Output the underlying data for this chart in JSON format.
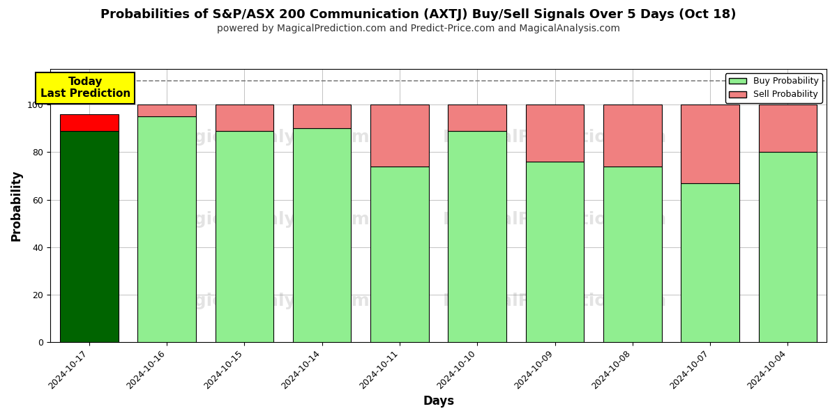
{
  "title": "Probabilities of S&P/ASX 200 Communication (AXTJ) Buy/Sell Signals Over 5 Days (Oct 18)",
  "subtitle": "powered by MagicalPrediction.com and Predict-Price.com and MagicalAnalysis.com",
  "xlabel": "Days",
  "ylabel": "Probability",
  "dates": [
    "2024-10-17",
    "2024-10-16",
    "2024-10-15",
    "2024-10-14",
    "2024-10-11",
    "2024-10-10",
    "2024-10-09",
    "2024-10-08",
    "2024-10-07",
    "2024-10-04"
  ],
  "buy_values": [
    89,
    95,
    89,
    90,
    74,
    89,
    76,
    74,
    67,
    80
  ],
  "sell_values": [
    7,
    5,
    11,
    10,
    26,
    11,
    24,
    26,
    33,
    20
  ],
  "today_index": 0,
  "today_buy_color": "#006400",
  "today_sell_color": "#FF0000",
  "normal_buy_color": "#90EE90",
  "normal_sell_color": "#F08080",
  "bar_edge_color": "#000000",
  "ylim": [
    0,
    115
  ],
  "dashed_line_y": 110,
  "legend_buy_label": "Buy Probability",
  "legend_sell_label": "Sell Probability",
  "today_annotation": "Today\nLast Prediction",
  "title_fontsize": 13,
  "subtitle_fontsize": 10,
  "axis_label_fontsize": 12,
  "tick_fontsize": 9,
  "background_color": "#ffffff",
  "grid_color": "#aaaaaa",
  "bar_width": 0.75
}
